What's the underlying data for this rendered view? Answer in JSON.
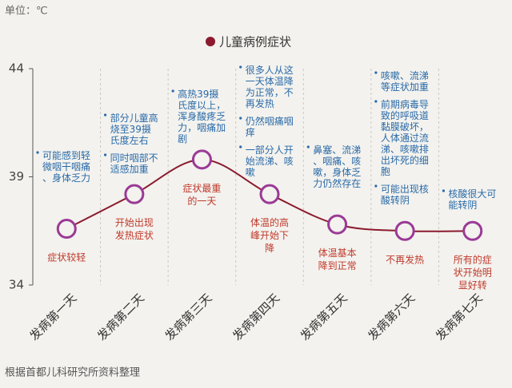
{
  "chart_data": {
    "type": "line",
    "title": "儿童病例症状",
    "unit_label": "单位：℃",
    "source": "根据首都儿科研究所资料整理",
    "categories": [
      "发病第一天",
      "发病第二天",
      "发病第三天",
      "发病第四天",
      "发病第五天",
      "发病第六天",
      "发病第七天"
    ],
    "series": [
      {
        "name": "儿童病例症状",
        "color": "#8b1a2e",
        "values": [
          36.6,
          38.2,
          39.8,
          38.2,
          36.8,
          36.5,
          36.5
        ]
      }
    ],
    "ylim": [
      34,
      44
    ],
    "yticks": [
      34,
      39,
      44
    ],
    "point_labels": [
      "症状较轻",
      "开始出现发热症状",
      "症状最重的一天",
      "体温的高峰开始下降",
      "体温基本降到正常",
      "不再发热",
      "所有的症状开始明显好转"
    ],
    "notes": [
      [
        "可能感到轻微咽干咽痛、身体乏力"
      ],
      [
        "部分儿童高烧至39摄氏度左右",
        "同时咽部不适感加重"
      ],
      [
        "高热39摄氏度以上，浑身酸疼乏力，咽痛加剧"
      ],
      [
        "很多人从这一天体温降为正常，不再发热",
        "仍然咽痛咽痒",
        "一部分人开始流涕、咳嗽"
      ],
      [
        "鼻塞、流涕、咽痛、咳嗽，身体乏力仍然存在"
      ],
      [
        "咳嗽、流涕等症状加重",
        "前期病毒导致的呼吸道黏膜破坏，人体通过流涕、咳嗽排出坏死的细胞",
        "可能出现核酸转阴"
      ],
      [
        "核酸很大可能转阴"
      ]
    ]
  }
}
